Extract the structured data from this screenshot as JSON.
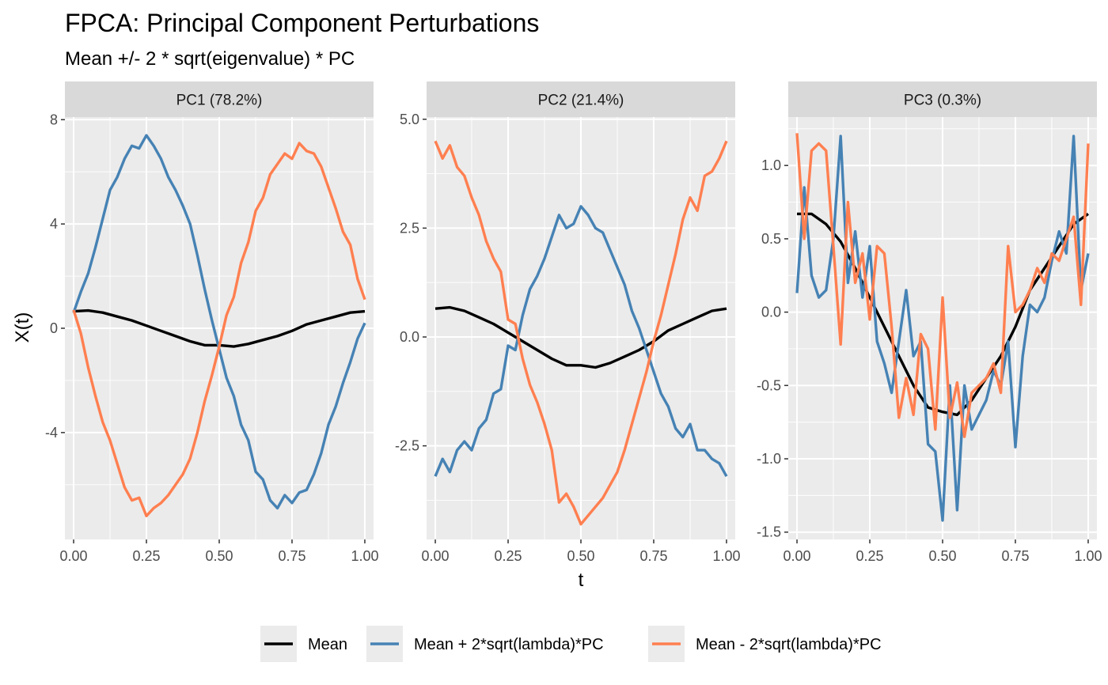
{
  "chart_data": {
    "type": "line",
    "title": "FPCA: Principal Component Perturbations",
    "subtitle": "Mean +/- 2 * sqrt(eigenvalue) * PC",
    "xlabel": "t",
    "ylabel": "X(t)",
    "x_ticks": [
      "0.00",
      "0.25",
      "0.50",
      "0.75",
      "1.00"
    ],
    "x_tick_values": [
      0,
      0.25,
      0.5,
      0.75,
      1.0
    ],
    "xlim": [
      -0.03,
      1.03
    ],
    "colors": {
      "mean": "#000000",
      "plus": "#4682b4",
      "minus": "#ff7f50",
      "panel_bg": "#ebebeb",
      "strip_bg": "#d9d9d9",
      "grid": "#ffffff"
    },
    "legend": [
      {
        "name": "Mean",
        "color": "#000000"
      },
      {
        "name": "Mean + 2*sqrt(lambda)*PC",
        "color": "#4682b4"
      },
      {
        "name": "Mean - 2*sqrt(lambda)*PC",
        "color": "#ff7f50"
      }
    ],
    "legend_position": "bottom",
    "panels": [
      {
        "label": "PC1 (78.2%)",
        "ylim": [
          -8.1,
          8.1
        ],
        "y_tick_values": [
          -4,
          0,
          4,
          8
        ],
        "y_tick_labels": [
          "-4",
          "0",
          "4",
          "8"
        ],
        "series": [
          {
            "name": "Mean",
            "x": [
              0,
              0.05,
              0.1,
              0.15,
              0.2,
              0.25,
              0.3,
              0.35,
              0.4,
              0.45,
              0.5,
              0.55,
              0.6,
              0.65,
              0.7,
              0.75,
              0.8,
              0.85,
              0.9,
              0.95,
              1.0
            ],
            "y": [
              0.65,
              0.68,
              0.6,
              0.45,
              0.3,
              0.1,
              -0.1,
              -0.3,
              -0.5,
              -0.65,
              -0.65,
              -0.7,
              -0.6,
              -0.45,
              -0.3,
              -0.1,
              0.15,
              0.3,
              0.45,
              0.6,
              0.65
            ]
          },
          {
            "name": "Mean + 2*sqrt(lambda)*PC",
            "x": [
              0,
              0.025,
              0.05,
              0.075,
              0.1,
              0.125,
              0.15,
              0.175,
              0.2,
              0.225,
              0.25,
              0.275,
              0.3,
              0.325,
              0.35,
              0.375,
              0.4,
              0.425,
              0.45,
              0.475,
              0.5,
              0.525,
              0.55,
              0.575,
              0.6,
              0.625,
              0.65,
              0.675,
              0.7,
              0.725,
              0.75,
              0.775,
              0.8,
              0.825,
              0.85,
              0.875,
              0.9,
              0.925,
              0.95,
              0.975,
              1.0
            ],
            "y": [
              0.6,
              1.4,
              2.1,
              3.1,
              4.2,
              5.3,
              5.8,
              6.5,
              7.0,
              6.9,
              7.4,
              7.0,
              6.5,
              5.8,
              5.3,
              4.7,
              4.0,
              2.8,
              1.5,
              0.3,
              -0.8,
              -1.9,
              -2.6,
              -3.7,
              -4.3,
              -5.5,
              -5.8,
              -6.6,
              -6.9,
              -6.4,
              -6.7,
              -6.3,
              -6.2,
              -5.6,
              -4.8,
              -3.7,
              -3.0,
              -2.1,
              -1.3,
              -0.4,
              0.2
            ]
          },
          {
            "name": "Mean - 2*sqrt(lambda)*PC",
            "x": [
              0,
              0.025,
              0.05,
              0.075,
              0.1,
              0.125,
              0.15,
              0.175,
              0.2,
              0.225,
              0.25,
              0.275,
              0.3,
              0.325,
              0.35,
              0.375,
              0.4,
              0.425,
              0.45,
              0.475,
              0.5,
              0.525,
              0.55,
              0.575,
              0.6,
              0.625,
              0.65,
              0.675,
              0.7,
              0.725,
              0.75,
              0.775,
              0.8,
              0.825,
              0.85,
              0.875,
              0.9,
              0.925,
              0.95,
              0.975,
              1.0
            ],
            "y": [
              0.7,
              -0.2,
              -1.5,
              -2.6,
              -3.6,
              -4.3,
              -5.2,
              -6.1,
              -6.6,
              -6.5,
              -7.2,
              -6.9,
              -6.7,
              -6.4,
              -6.0,
              -5.6,
              -5.0,
              -4.0,
              -2.8,
              -1.8,
              -0.7,
              0.5,
              1.2,
              2.5,
              3.3,
              4.5,
              5.0,
              5.9,
              6.3,
              6.7,
              6.5,
              7.1,
              6.8,
              6.7,
              6.2,
              5.4,
              4.6,
              3.7,
              3.2,
              1.9,
              1.1
            ]
          }
        ]
      },
      {
        "label": "PC2 (21.4%)",
        "ylim": [
          -4.65,
          5.05
        ],
        "y_tick_values": [
          -2.5,
          0,
          2.5,
          5
        ],
        "y_tick_labels": [
          "-2.5",
          "0.0",
          "2.5",
          "5.0"
        ],
        "series": [
          {
            "name": "Mean",
            "x": [
              0,
              0.05,
              0.1,
              0.15,
              0.2,
              0.25,
              0.3,
              0.35,
              0.4,
              0.45,
              0.5,
              0.55,
              0.6,
              0.65,
              0.7,
              0.75,
              0.8,
              0.85,
              0.9,
              0.95,
              1.0
            ],
            "y": [
              0.65,
              0.68,
              0.6,
              0.45,
              0.3,
              0.1,
              -0.1,
              -0.3,
              -0.5,
              -0.65,
              -0.65,
              -0.7,
              -0.6,
              -0.45,
              -0.3,
              -0.1,
              0.15,
              0.3,
              0.45,
              0.6,
              0.65
            ]
          },
          {
            "name": "Mean + 2*sqrt(lambda)*PC",
            "x": [
              0,
              0.025,
              0.05,
              0.075,
              0.1,
              0.125,
              0.15,
              0.175,
              0.2,
              0.225,
              0.25,
              0.275,
              0.3,
              0.325,
              0.35,
              0.375,
              0.4,
              0.425,
              0.45,
              0.475,
              0.5,
              0.525,
              0.55,
              0.575,
              0.6,
              0.625,
              0.65,
              0.675,
              0.7,
              0.725,
              0.75,
              0.775,
              0.8,
              0.825,
              0.85,
              0.875,
              0.9,
              0.925,
              0.95,
              0.975,
              1.0
            ],
            "y": [
              -3.2,
              -2.8,
              -3.1,
              -2.6,
              -2.4,
              -2.6,
              -2.1,
              -1.9,
              -1.3,
              -1.2,
              -0.2,
              -0.3,
              0.5,
              1.1,
              1.4,
              1.8,
              2.3,
              2.8,
              2.5,
              2.6,
              3.0,
              2.8,
              2.5,
              2.4,
              2.0,
              1.6,
              1.2,
              0.6,
              0.2,
              -0.3,
              -0.8,
              -1.3,
              -1.6,
              -2.1,
              -2.3,
              -2.0,
              -2.6,
              -2.6,
              -2.8,
              -2.9,
              -3.2
            ]
          },
          {
            "name": "Mean - 2*sqrt(lambda)*PC",
            "x": [
              0,
              0.025,
              0.05,
              0.075,
              0.1,
              0.125,
              0.15,
              0.175,
              0.2,
              0.225,
              0.25,
              0.275,
              0.3,
              0.325,
              0.35,
              0.375,
              0.4,
              0.425,
              0.45,
              0.475,
              0.5,
              0.525,
              0.55,
              0.575,
              0.6,
              0.625,
              0.65,
              0.675,
              0.7,
              0.725,
              0.75,
              0.775,
              0.8,
              0.825,
              0.85,
              0.875,
              0.9,
              0.925,
              0.95,
              0.975,
              1.0
            ],
            "y": [
              4.5,
              4.1,
              4.4,
              3.9,
              3.7,
              3.2,
              2.8,
              2.2,
              1.8,
              1.5,
              0.4,
              0.3,
              -0.5,
              -1.1,
              -1.5,
              -2.0,
              -2.6,
              -3.8,
              -3.6,
              -3.9,
              -4.3,
              -4.1,
              -3.9,
              -3.7,
              -3.4,
              -3.1,
              -2.6,
              -2.0,
              -1.4,
              -0.8,
              -0.1,
              0.5,
              1.2,
              1.9,
              2.7,
              3.2,
              2.9,
              3.7,
              3.8,
              4.1,
              4.5
            ]
          }
        ]
      },
      {
        "label": "PC3 (0.3%)",
        "ylim": [
          -1.55,
          1.33
        ],
        "y_tick_values": [
          -1.5,
          -1,
          -0.5,
          0,
          0.5,
          1
        ],
        "y_tick_labels": [
          "-1.5",
          "-1.0",
          "-0.5",
          "0.0",
          "0.5",
          "1.0"
        ],
        "series": [
          {
            "name": "Mean",
            "x": [
              0,
              0.05,
              0.1,
              0.15,
              0.2,
              0.25,
              0.3,
              0.35,
              0.4,
              0.45,
              0.5,
              0.55,
              0.6,
              0.65,
              0.7,
              0.75,
              0.8,
              0.85,
              0.9,
              0.95,
              1.0
            ],
            "y": [
              0.67,
              0.67,
              0.6,
              0.48,
              0.3,
              0.1,
              -0.1,
              -0.3,
              -0.5,
              -0.65,
              -0.68,
              -0.7,
              -0.6,
              -0.45,
              -0.3,
              -0.1,
              0.15,
              0.3,
              0.45,
              0.6,
              0.67
            ]
          },
          {
            "name": "Mean + 2*sqrt(lambda)*PC",
            "x": [
              0,
              0.025,
              0.05,
              0.075,
              0.1,
              0.125,
              0.15,
              0.175,
              0.2,
              0.225,
              0.25,
              0.275,
              0.3,
              0.325,
              0.35,
              0.375,
              0.4,
              0.425,
              0.45,
              0.475,
              0.5,
              0.525,
              0.55,
              0.575,
              0.6,
              0.625,
              0.65,
              0.675,
              0.7,
              0.725,
              0.75,
              0.775,
              0.8,
              0.825,
              0.85,
              0.875,
              0.9,
              0.925,
              0.95,
              0.975,
              1.0
            ],
            "y": [
              0.13,
              0.85,
              0.25,
              0.1,
              0.15,
              0.5,
              1.2,
              0.2,
              0.55,
              0.1,
              0.45,
              -0.2,
              -0.35,
              -0.55,
              -0.2,
              0.15,
              -0.3,
              -0.2,
              -0.9,
              -0.95,
              -1.42,
              -0.5,
              -1.35,
              -0.5,
              -0.8,
              -0.7,
              -0.6,
              -0.4,
              -0.5,
              -0.2,
              -0.92,
              -0.3,
              0.05,
              0.0,
              0.1,
              0.35,
              0.55,
              0.4,
              1.2,
              0.15,
              0.4
            ]
          },
          {
            "name": "Mean - 2*sqrt(lambda)*PC",
            "x": [
              0,
              0.025,
              0.05,
              0.075,
              0.1,
              0.125,
              0.15,
              0.175,
              0.2,
              0.225,
              0.25,
              0.275,
              0.3,
              0.325,
              0.35,
              0.375,
              0.4,
              0.425,
              0.45,
              0.475,
              0.5,
              0.525,
              0.55,
              0.575,
              0.6,
              0.625,
              0.65,
              0.675,
              0.7,
              0.725,
              0.75,
              0.775,
              0.8,
              0.825,
              0.85,
              0.875,
              0.9,
              0.925,
              0.95,
              0.975,
              1.0
            ],
            "y": [
              1.22,
              0.5,
              1.1,
              1.15,
              1.1,
              0.45,
              -0.22,
              0.75,
              0.2,
              0.4,
              -0.05,
              0.45,
              0.4,
              -0.1,
              -0.72,
              -0.45,
              -0.7,
              -0.15,
              -0.25,
              -0.8,
              0.1,
              -0.72,
              -0.48,
              -0.85,
              -0.55,
              -0.5,
              -0.45,
              -0.35,
              -0.55,
              0.45,
              0.0,
              0.05,
              0.15,
              0.3,
              0.2,
              0.4,
              0.35,
              0.5,
              0.65,
              0.05,
              1.15
            ]
          }
        ]
      }
    ]
  }
}
